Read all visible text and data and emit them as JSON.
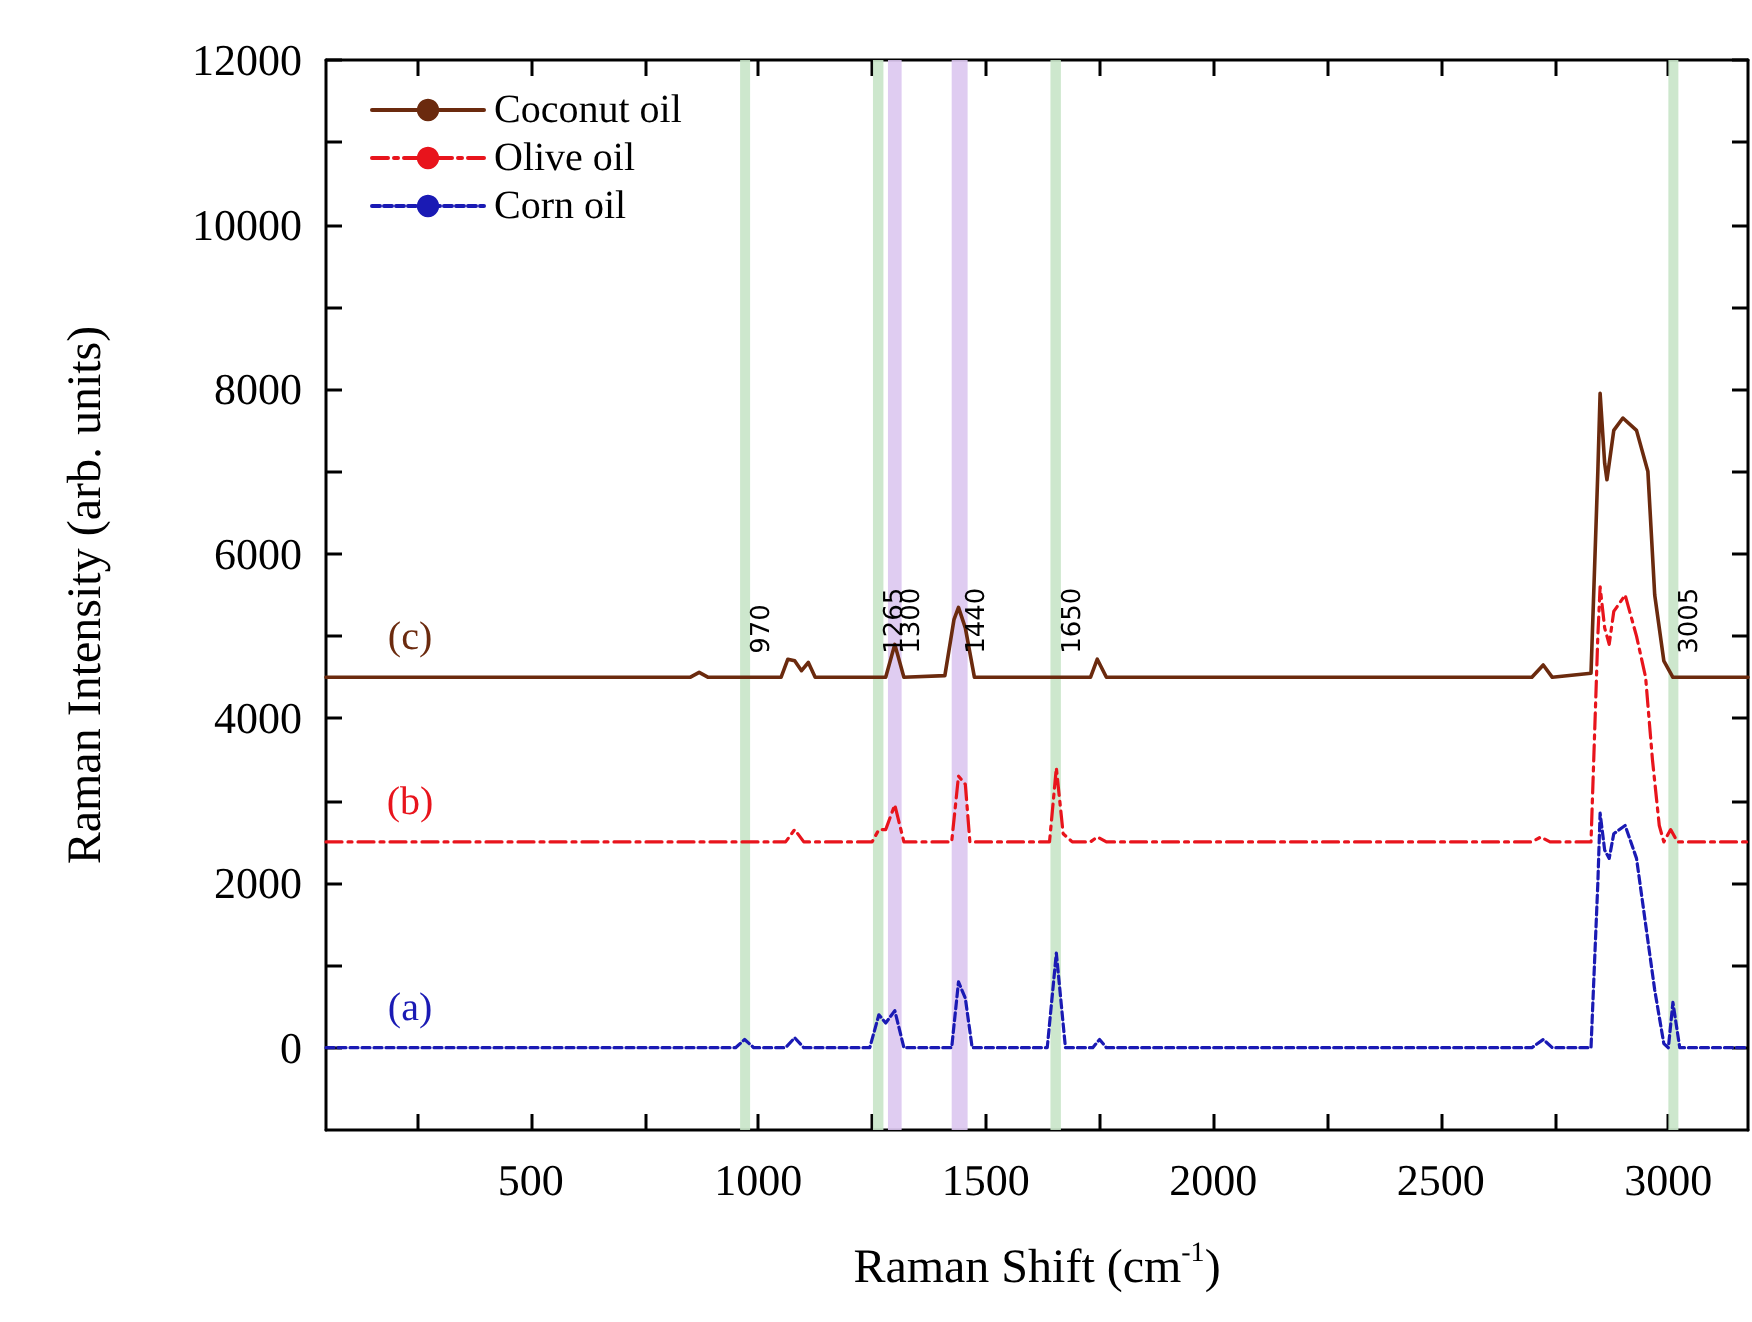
{
  "chart_data": {
    "type": "line",
    "xlabel": "Raman Shift (cm$^{-1}$)",
    "ylabel": "Raman Intensity (arb. units)",
    "xlim": [
      50,
      3175
    ],
    "xticks": [
      {
        "value": 250,
        "label": null
      },
      500,
      {
        "value": 750,
        "label": null
      },
      1000,
      {
        "value": 1250,
        "label": null
      },
      1500,
      {
        "value": 1750,
        "label": null
      },
      2000,
      {
        "value": 2250,
        "label": null
      },
      2500,
      {
        "value": 2750,
        "label": null
      },
      3000
    ],
    "ylim": [
      -1000,
      12000
    ],
    "yticks": [
      0,
      {
        "value": 1000,
        "label": null
      },
      2000,
      {
        "value": 3000,
        "label": null
      },
      4000,
      {
        "value": 5000,
        "label": null
      },
      6000,
      {
        "value": 7000,
        "label": null
      },
      8000,
      {
        "value": 9000,
        "label": null
      },
      10000,
      {
        "value": 11000,
        "label": null
      },
      12000
    ],
    "grid": false,
    "legend": "top left",
    "marker": "none",
    "series": [
      {
        "name": "Coconut oil",
        "color": "#6b2a0e",
        "line_style": "solid",
        "x": [
          50,
          850,
          870,
          890,
          1050,
          1065,
          1080,
          1095,
          1110,
          1125,
          1280,
          1300,
          1320,
          1410,
          1430,
          1440,
          1455,
          1475,
          1730,
          1745,
          1765,
          2700,
          2725,
          2745,
          2830,
          2845,
          2850,
          2860,
          2865,
          2880,
          2900,
          2930,
          2955,
          2970,
          2990,
          3010,
          3175
        ],
        "values": [
          4500,
          4500,
          4560,
          4500,
          4500,
          4720,
          4700,
          4580,
          4680,
          4500,
          4500,
          4900,
          4500,
          4520,
          5200,
          5350,
          5100,
          4500,
          4500,
          4720,
          4500,
          4500,
          4650,
          4500,
          4550,
          7000,
          7950,
          7100,
          6900,
          7500,
          7650,
          7500,
          7000,
          5500,
          4700,
          4500,
          4500
        ]
      },
      {
        "name": "Olive oil",
        "color": "#e8141c",
        "line_style": "dashdot",
        "x": [
          50,
          1060,
          1080,
          1100,
          1250,
          1265,
          1280,
          1300,
          1320,
          1425,
          1440,
          1455,
          1465,
          1640,
          1655,
          1670,
          1690,
          1730,
          1745,
          1765,
          2700,
          2720,
          2740,
          2830,
          2845,
          2850,
          2860,
          2870,
          2880,
          2905,
          2930,
          2950,
          2965,
          2980,
          2990,
          3005,
          3020,
          3175
        ],
        "values": [
          2500,
          2500,
          2650,
          2500,
          2500,
          2650,
          2650,
          2950,
          2500,
          2500,
          3300,
          3200,
          2500,
          2500,
          3400,
          2600,
          2500,
          2500,
          2560,
          2500,
          2500,
          2560,
          2500,
          2500,
          5000,
          5600,
          5100,
          4900,
          5300,
          5500,
          5000,
          4500,
          3500,
          2700,
          2500,
          2650,
          2500,
          2500
        ]
      },
      {
        "name": "Corn oil",
        "color": "#1a1ab4",
        "line_style": "dashed",
        "x": [
          50,
          950,
          970,
          990,
          1060,
          1080,
          1100,
          1245,
          1265,
          1280,
          1300,
          1320,
          1425,
          1440,
          1455,
          1470,
          1635,
          1655,
          1675,
          1735,
          1750,
          1765,
          2700,
          2725,
          2745,
          2830,
          2845,
          2850,
          2860,
          2870,
          2880,
          2905,
          2930,
          2950,
          2970,
          2990,
          3000,
          3010,
          3025,
          3175
        ],
        "values": [
          0,
          0,
          100,
          0,
          0,
          120,
          0,
          0,
          400,
          300,
          450,
          0,
          0,
          800,
          600,
          0,
          0,
          1150,
          0,
          0,
          100,
          0,
          0,
          100,
          0,
          0,
          2000,
          2850,
          2400,
          2300,
          2600,
          2700,
          2300,
          1500,
          700,
          50,
          0,
          550,
          0,
          0
        ]
      }
    ],
    "bands": [
      {
        "axis": "x",
        "from": 960,
        "to": 982,
        "label": "970",
        "color": "#c8e4c8"
      },
      {
        "axis": "x",
        "from": 1252,
        "to": 1275,
        "label": "1265",
        "color": "#c8e4c8"
      },
      {
        "axis": "x",
        "from": 1285,
        "to": 1315,
        "label": "1300",
        "color": "#dcc6f0"
      },
      {
        "axis": "x",
        "from": 1425,
        "to": 1460,
        "label": "1440",
        "color": "#dcc6f0"
      },
      {
        "axis": "x",
        "from": 1642,
        "to": 1665,
        "label": "1650",
        "color": "#c8e4c8"
      },
      {
        "axis": "x",
        "from": 3000,
        "to": 3022,
        "label": "3005",
        "color": "#c8e4c8"
      }
    ],
    "annotations": [
      "(c)",
      "(b)",
      "(a)"
    ]
  }
}
